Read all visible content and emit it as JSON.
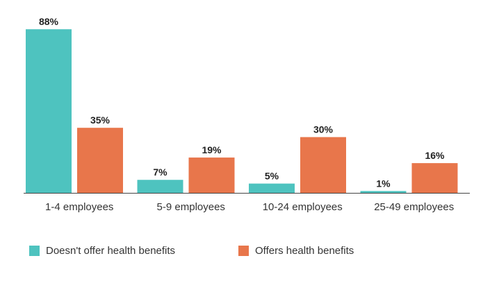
{
  "chart_data": {
    "type": "bar",
    "categories": [
      "1-4 employees",
      "5-9 employees",
      "10-24 employees",
      "25-49 employees"
    ],
    "series": [
      {
        "name": "Doesn't offer health benefits",
        "values": [
          88,
          7,
          5,
          1
        ],
        "labels": [
          "88%",
          "7%",
          "5%",
          "1%"
        ],
        "color": "#4ec3bf"
      },
      {
        "name": "Offers health benefits",
        "values": [
          35,
          19,
          30,
          16
        ],
        "labels": [
          "35%",
          "19%",
          "30%",
          "16%"
        ],
        "color": "#e8764b"
      }
    ],
    "ylim": [
      0,
      100
    ],
    "grid": false,
    "legend_position": "bottom-left",
    "title": "",
    "xlabel": "",
    "ylabel": ""
  }
}
